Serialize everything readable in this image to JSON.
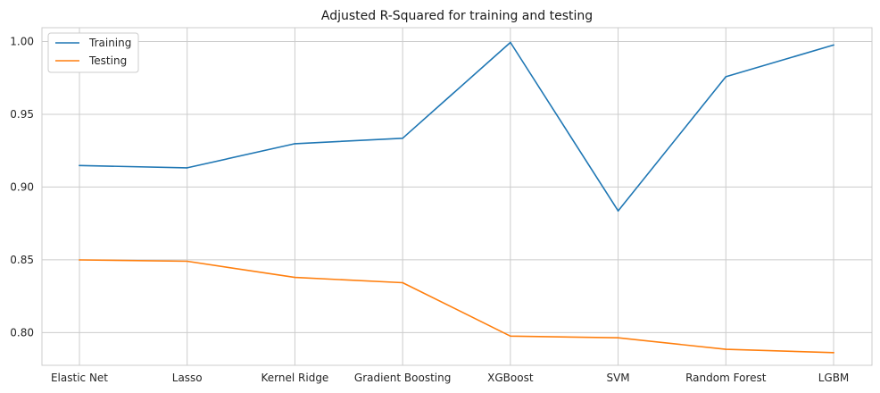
{
  "chart_data": {
    "type": "line",
    "title": "Adjusted R-Squared for training and testing",
    "xlabel": "",
    "ylabel": "",
    "categories": [
      "Elastic Net",
      "Lasso",
      "Kernel Ridge",
      "Gradient Boosting",
      "XGBoost",
      "SVM",
      "Random Forest",
      "LGBM"
    ],
    "series": [
      {
        "name": "Training",
        "color": "#1f77b4",
        "values": [
          0.9148,
          0.9132,
          0.9298,
          0.9335,
          0.9994,
          0.8836,
          0.9758,
          0.9976
        ]
      },
      {
        "name": "Testing",
        "color": "#ff7f0e",
        "values": [
          0.8499,
          0.849,
          0.8379,
          0.8343,
          0.7976,
          0.7964,
          0.7885,
          0.7862
        ]
      }
    ],
    "ylim": [
      0.7775,
      1.0095
    ],
    "yticks": [
      "0.80",
      "0.85",
      "0.90",
      "0.95",
      "1.00"
    ],
    "grid": true,
    "legend_position": "top-left"
  }
}
